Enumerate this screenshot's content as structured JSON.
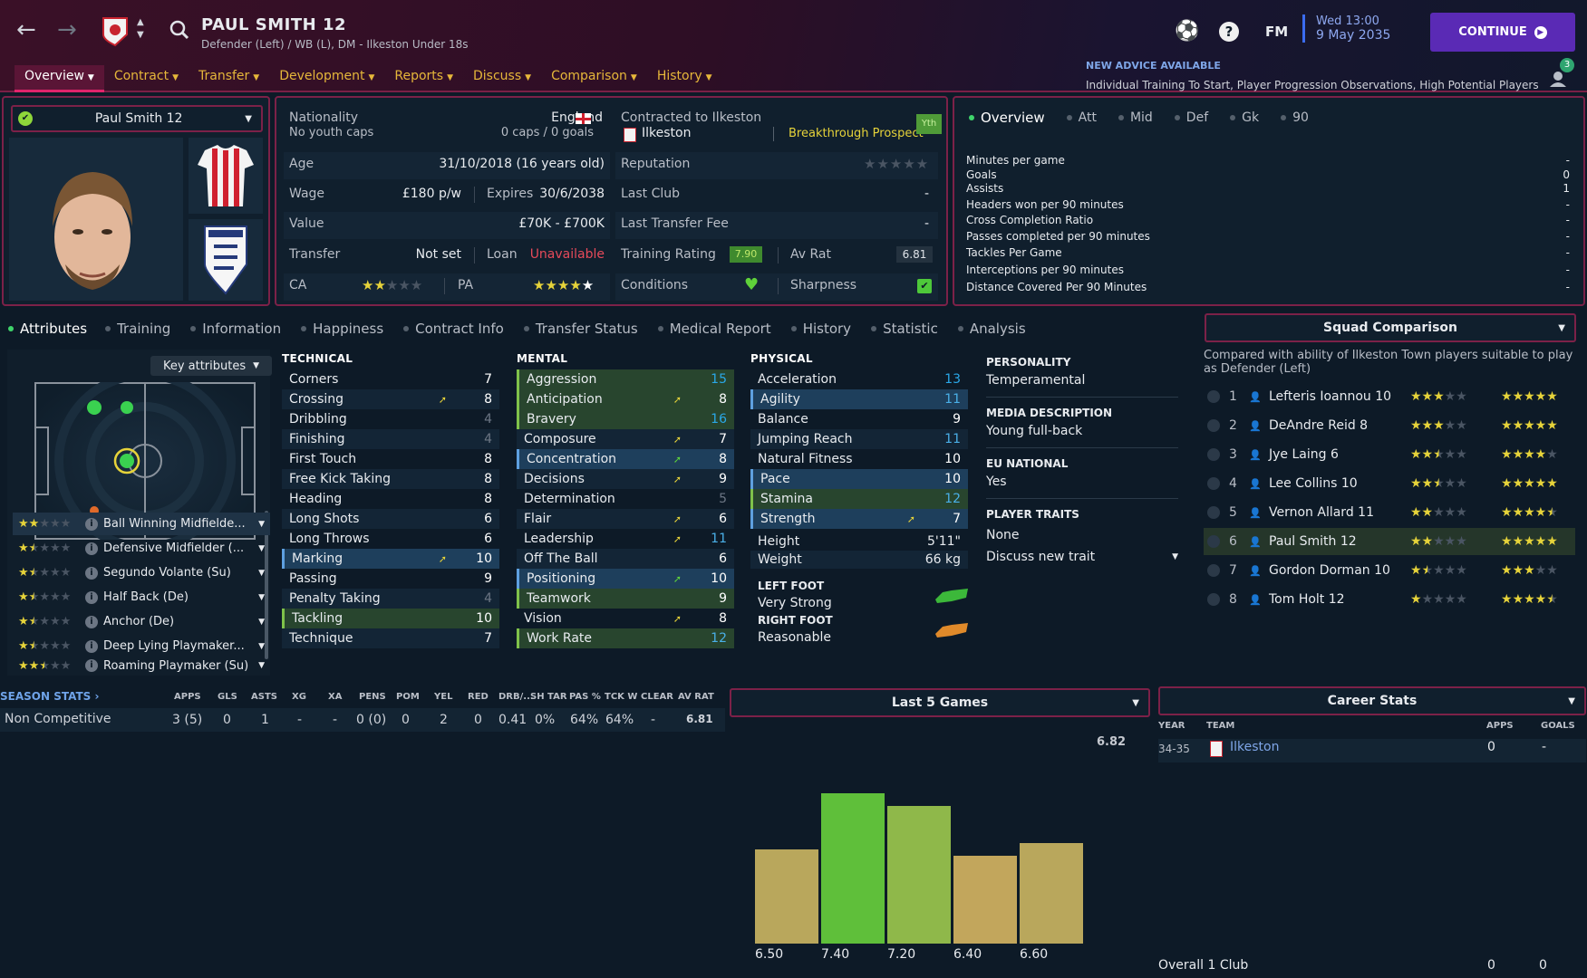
{
  "header": {
    "player_name": "PAUL SMITH 12",
    "subtitle": "Defender (Left) / WB (L), DM - Ilkeston Under 18s",
    "fm_label": "FM",
    "date_time": "Wed 13:00",
    "date": "9 May 2035",
    "continue_label": "CONTINUE",
    "advice_title": "NEW ADVICE AVAILABLE",
    "advice_text": "Individual Training To Start, Player Progression Observations, High Potential Players",
    "notif_count": "3",
    "menu": [
      "Overview",
      "Contract",
      "Transfer",
      "Development",
      "Reports",
      "Discuss",
      "Comparison",
      "History"
    ]
  },
  "profile": {
    "selector_name": "Paul Smith 12"
  },
  "info": {
    "nationality_label": "Nationality",
    "nationality": "England",
    "youth_caps": "No youth caps",
    "caps": "0 caps / 0 goals",
    "contracted_label": "Contracted to Ilkeston",
    "club": "Ilkeston",
    "prospect": "Breakthrough Prospect",
    "yth": "Yth",
    "age_label": "Age",
    "age": "31/10/2018 (16 years old)",
    "reputation_label": "Reputation",
    "reputation_stars": 0,
    "wage_label": "Wage",
    "wage": "£180 p/w",
    "expires_label": "Expires",
    "expires": "30/6/2038",
    "last_club_label": "Last Club",
    "last_club": "-",
    "value_label": "Value",
    "value": "£70K - £700K",
    "last_fee_label": "Last Transfer Fee",
    "last_fee": "-",
    "transfer_label": "Transfer",
    "transfer": "Not set",
    "loan_label": "Loan",
    "loan": "Unavailable",
    "training_label": "Training Rating",
    "training_rating": "7.90",
    "avrat_label": "Av Rat",
    "avrat": "6.81",
    "ca_label": "CA",
    "ca_stars": 2,
    "pa_label": "PA",
    "pa_stars": 5,
    "conditions_label": "Conditions",
    "sharpness_label": "Sharpness"
  },
  "overview": {
    "tabs": [
      "Overview",
      "Att",
      "Mid",
      "Def",
      "Gk",
      "90"
    ],
    "rows": [
      {
        "label": "Minutes per game",
        "value": "-"
      },
      {
        "label": "Goals",
        "value": "0"
      },
      {
        "label": "Assists",
        "value": "1"
      },
      {
        "label": "Headers won per 90 minutes",
        "value": "-"
      },
      {
        "label": "Cross Completion Ratio",
        "value": "-"
      },
      {
        "label": "Passes completed per 90 minutes",
        "value": "-"
      },
      {
        "label": "Tackles Per Game",
        "value": "-"
      },
      {
        "label": "Interceptions per 90 minutes",
        "value": "-"
      },
      {
        "label": "Distance Covered Per 90 Minutes",
        "value": "-"
      }
    ]
  },
  "subtabs": [
    "Attributes",
    "Training",
    "Information",
    "Happiness",
    "Contract Info",
    "Transfer Status",
    "Medical Report",
    "History",
    "Statistic",
    "Analysis"
  ],
  "key_attr_label": "Key attributes",
  "roles": [
    {
      "name": "Ball Winning Midfielde...",
      "stars": 2
    },
    {
      "name": "Defensive Midfielder (...",
      "stars": 1.5
    },
    {
      "name": "Segundo Volante (Su)",
      "stars": 1.5
    },
    {
      "name": "Half Back (De)",
      "stars": 1.5
    },
    {
      "name": "Anchor (De)",
      "stars": 1.5
    },
    {
      "name": "Deep Lying Playmaker...",
      "stars": 1.5
    },
    {
      "name": "Roaming Playmaker (Su)",
      "stars": 2.5
    }
  ],
  "attributes": {
    "technical_title": "TECHNICAL",
    "mental_title": "MENTAL",
    "physical_title": "PHYSICAL",
    "technical": [
      {
        "name": "Corners",
        "value": "7"
      },
      {
        "name": "Crossing",
        "value": "8",
        "arrow": "up"
      },
      {
        "name": "Dribbling",
        "value": "4"
      },
      {
        "name": "Finishing",
        "value": "4"
      },
      {
        "name": "First Touch",
        "value": "8"
      },
      {
        "name": "Free Kick Taking",
        "value": "8"
      },
      {
        "name": "Heading",
        "value": "8"
      },
      {
        "name": "Long Shots",
        "value": "6"
      },
      {
        "name": "Long Throws",
        "value": "6"
      },
      {
        "name": "Marking",
        "value": "10",
        "arrow": "up",
        "hl": "blue"
      },
      {
        "name": "Passing",
        "value": "9"
      },
      {
        "name": "Penalty Taking",
        "value": "4"
      },
      {
        "name": "Tackling",
        "value": "10",
        "hl": "green"
      },
      {
        "name": "Technique",
        "value": "7"
      }
    ],
    "mental": [
      {
        "name": "Aggression",
        "value": "15",
        "hl": "green"
      },
      {
        "name": "Anticipation",
        "value": "8",
        "arrow": "up",
        "hl": "green"
      },
      {
        "name": "Bravery",
        "value": "16",
        "hl": "green"
      },
      {
        "name": "Composure",
        "value": "7",
        "arrow": "up"
      },
      {
        "name": "Concentration",
        "value": "8",
        "arrow": "up",
        "hl": "blue"
      },
      {
        "name": "Decisions",
        "value": "9",
        "arrow": "up"
      },
      {
        "name": "Determination",
        "value": "5"
      },
      {
        "name": "Flair",
        "value": "6",
        "arrow": "up"
      },
      {
        "name": "Leadership",
        "value": "11",
        "arrow": "up"
      },
      {
        "name": "Off The Ball",
        "value": "6"
      },
      {
        "name": "Positioning",
        "value": "10",
        "arrow": "up",
        "hl": "blue"
      },
      {
        "name": "Teamwork",
        "value": "9",
        "hl": "green"
      },
      {
        "name": "Vision",
        "value": "8",
        "arrow": "up"
      },
      {
        "name": "Work Rate",
        "value": "12",
        "hl": "green"
      }
    ],
    "physical": [
      {
        "name": "Acceleration",
        "value": "13"
      },
      {
        "name": "Agility",
        "value": "11",
        "hl": "blue"
      },
      {
        "name": "Balance",
        "value": "9"
      },
      {
        "name": "Jumping Reach",
        "value": "11"
      },
      {
        "name": "Natural Fitness",
        "value": "10"
      },
      {
        "name": "Pace",
        "value": "10",
        "hl": "blue"
      },
      {
        "name": "Stamina",
        "value": "12",
        "hl": "green"
      },
      {
        "name": "Strength",
        "value": "7",
        "arrow": "up",
        "hl": "blue"
      }
    ],
    "height_label": "Height",
    "height": "5'11\"",
    "weight_label": "Weight",
    "weight": "66 kg",
    "left_foot_label": "LEFT FOOT",
    "left_foot": "Very Strong",
    "right_foot_label": "RIGHT FOOT",
    "right_foot": "Reasonable"
  },
  "personality": {
    "personality_title": "PERSONALITY",
    "personality": "Temperamental",
    "media_title": "MEDIA DESCRIPTION",
    "media": "Young full-back",
    "eu_title": "EU NATIONAL",
    "eu": "Yes",
    "traits_title": "PLAYER TRAITS",
    "traits": "None",
    "discuss": "Discuss new trait"
  },
  "squad": {
    "title": "Squad Comparison",
    "desc": "Compared with ability of Ilkeston Town players suitable to play as Defender (Left)",
    "rows": [
      {
        "num": "1",
        "name": "Lefteris Ioannou 10",
        "ca": 3,
        "pa": 5
      },
      {
        "num": "2",
        "name": "DeAndre Reid 8",
        "ca": 3,
        "pa": 5
      },
      {
        "num": "3",
        "name": "Jye Laing 6",
        "ca": 2.5,
        "pa": 4
      },
      {
        "num": "4",
        "name": "Lee Collins 10",
        "ca": 2.5,
        "pa": 5
      },
      {
        "num": "5",
        "name": "Vernon Allard 11",
        "ca": 2,
        "pa": 4.5
      },
      {
        "num": "6",
        "name": "Paul Smith 12",
        "ca": 2,
        "pa": 5
      },
      {
        "num": "7",
        "name": "Gordon Dorman 10",
        "ca": 1.5,
        "pa": 3
      },
      {
        "num": "8",
        "name": "Tom Holt 12",
        "ca": 1,
        "pa": 4.5
      }
    ]
  },
  "season": {
    "title": "SEASON STATS",
    "headers": [
      "APPS",
      "GLS",
      "ASTS",
      "XG",
      "XA",
      "PENS",
      "POM",
      "YEL",
      "RED",
      "DRB/...",
      "SH TAR",
      "PAS %",
      "TCK W",
      "CLEAR",
      "AV RAT"
    ],
    "row_label": "Non Competitive",
    "values": [
      "3 (5)",
      "0",
      "1",
      "-",
      "-",
      "0 (0)",
      "0",
      "2",
      "0",
      "0.41",
      "0%",
      "64%",
      "64%",
      "-",
      "6.81"
    ]
  },
  "last5": {
    "title": "Last 5 Games",
    "avg_label": "6.82"
  },
  "career": {
    "title": "Career Stats",
    "h_year": "YEAR",
    "h_team": "TEAM",
    "h_apps": "APPS",
    "h_goals": "GOALS",
    "year": "34-35",
    "team": "Ilkeston",
    "apps": "0",
    "goals": "-",
    "total_label": "Overall 1 Club",
    "total_apps": "0",
    "total_goals": "0"
  },
  "chart_data": {
    "type": "bar",
    "title": "Last 5 Games",
    "categories": [
      "1",
      "2",
      "3",
      "4",
      "5"
    ],
    "values": [
      6.5,
      7.4,
      7.2,
      6.4,
      6.6
    ],
    "colors": [
      "#b9a75c",
      "#5fbf3a",
      "#8fb84a",
      "#c2a65c",
      "#b9a75c"
    ],
    "reference_value": 6.82,
    "ylim": [
      5.0,
      7.6
    ]
  }
}
